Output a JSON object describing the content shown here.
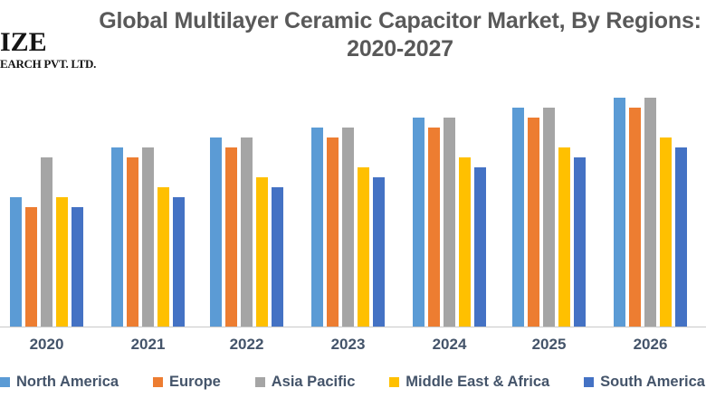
{
  "logo": {
    "line1": "IZE",
    "line2": "EARCH PVT. LTD."
  },
  "chart_data": {
    "type": "bar",
    "title": "Global Multilayer Ceramic Capacitor Market, By Regions: 2020-2027",
    "title_lines": [
      "Global Multilayer Ceramic Capacitor Market, By Regions:",
      "2020-2027"
    ],
    "categories": [
      "2020",
      "2021",
      "2022",
      "2023",
      "2024",
      "2025",
      "2026"
    ],
    "series": [
      {
        "name": "North America",
        "color": "#5B9BD5",
        "values": [
          13,
          18,
          19,
          20,
          21,
          22,
          23
        ]
      },
      {
        "name": "Europe",
        "color": "#ED7D31",
        "values": [
          12,
          17,
          18,
          19,
          20,
          21,
          22
        ]
      },
      {
        "name": "Asia Pacific",
        "color": "#A5A5A5",
        "values": [
          17,
          18,
          19,
          20,
          21,
          22,
          23
        ]
      },
      {
        "name": "Middle East & Africa",
        "color": "#FFC000",
        "values": [
          13,
          14,
          15,
          16,
          17,
          18,
          19
        ]
      },
      {
        "name": "South America",
        "color": "#4472C4",
        "values": [
          12,
          13,
          14,
          15,
          16,
          17,
          18
        ]
      }
    ],
    "xlabel": "",
    "ylabel": "",
    "value_units": "relative height units (no numeric value axis shown in image)",
    "ylim": [
      0,
      24.5
    ],
    "gridlines": false,
    "value_axis_visible": false,
    "legend_position": "bottom",
    "axis_line_color": "#C9C9C9",
    "title_color": "#595959",
    "label_color": "#44546A"
  }
}
